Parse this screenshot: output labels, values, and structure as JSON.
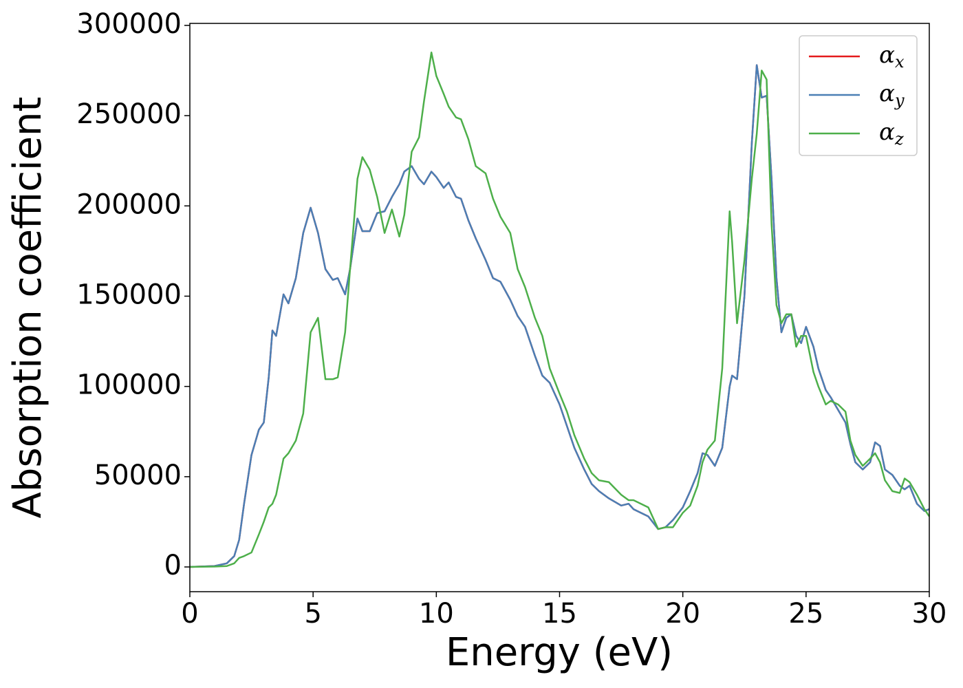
{
  "chart_data": {
    "type": "line",
    "xlabel": "Energy (eV)",
    "ylabel": "Absorption coefficient",
    "x": [
      0,
      1,
      1.5,
      1.8,
      2,
      2.2,
      2.5,
      2.8,
      3,
      3.2,
      3.35,
      3.5,
      3.8,
      4,
      4.3,
      4.6,
      4.9,
      5.2,
      5.5,
      5.8,
      6.0,
      6.3,
      6.5,
      6.8,
      7,
      7.3,
      7.6,
      7.9,
      8.2,
      8.5,
      8.7,
      9,
      9.3,
      9.5,
      9.8,
      10,
      10.3,
      10.5,
      10.8,
      11,
      11.3,
      11.6,
      12,
      12.3,
      12.6,
      13,
      13.3,
      13.6,
      14,
      14.3,
      14.6,
      15,
      15.3,
      15.6,
      16,
      16.3,
      16.6,
      17,
      17.5,
      17.8,
      18,
      18.3,
      18.6,
      19,
      19.3,
      19.6,
      20,
      20.3,
      20.6,
      20.8,
      21,
      21.3,
      21.6,
      21.9,
      22,
      22.2,
      22.5,
      22.8,
      23,
      23.2,
      23.4,
      23.6,
      23.8,
      24,
      24.2,
      24.4,
      24.6,
      24.8,
      25,
      25.3,
      25.5,
      25.8,
      26,
      26.3,
      26.6,
      26.8,
      27,
      27.3,
      27.6,
      27.8,
      28,
      28.2,
      28.5,
      28.8,
      29,
      29.2,
      29.5,
      29.8,
      30
    ],
    "series": [
      {
        "name": "αx",
        "color": "#e41a1c",
        "values": [
          0,
          500,
          2000,
          6000,
          15000,
          35000,
          62000,
          76000,
          80000,
          105000,
          131000,
          128000,
          151000,
          146000,
          160000,
          185000,
          199000,
          185000,
          165000,
          159000,
          160000,
          151000,
          165000,
          193000,
          186000,
          186000,
          196000,
          197000,
          205000,
          212000,
          219000,
          222000,
          215000,
          212000,
          219000,
          216000,
          210000,
          213000,
          205000,
          204000,
          192000,
          182000,
          170000,
          160000,
          158000,
          148000,
          139000,
          133000,
          117000,
          106000,
          102000,
          90000,
          78000,
          66000,
          54000,
          46000,
          42000,
          38000,
          34000,
          35000,
          32000,
          30000,
          28000,
          21000,
          22000,
          26000,
          33000,
          42000,
          52000,
          63000,
          62000,
          56000,
          66000,
          100000,
          106000,
          104000,
          150000,
          235000,
          278000,
          260000,
          261000,
          215000,
          160000,
          130000,
          138000,
          140000,
          128000,
          124000,
          133000,
          122000,
          110000,
          98000,
          94000,
          87000,
          80000,
          68000,
          58000,
          54000,
          58000,
          69000,
          67000,
          54000,
          51000,
          45000,
          43000,
          45000,
          35000,
          31000,
          32000
        ]
      },
      {
        "name": "αy",
        "color": "#4a7fb5",
        "values": [
          0,
          500,
          2000,
          6000,
          15000,
          35000,
          62000,
          76000,
          80000,
          105000,
          131000,
          128000,
          151000,
          146000,
          160000,
          185000,
          199000,
          185000,
          165000,
          159000,
          160000,
          151000,
          165000,
          193000,
          186000,
          186000,
          196000,
          197000,
          205000,
          212000,
          219000,
          222000,
          215000,
          212000,
          219000,
          216000,
          210000,
          213000,
          205000,
          204000,
          192000,
          182000,
          170000,
          160000,
          158000,
          148000,
          139000,
          133000,
          117000,
          106000,
          102000,
          90000,
          78000,
          66000,
          54000,
          46000,
          42000,
          38000,
          34000,
          35000,
          32000,
          30000,
          28000,
          21000,
          22000,
          26000,
          33000,
          42000,
          52000,
          63000,
          62000,
          56000,
          66000,
          100000,
          106000,
          104000,
          150000,
          235000,
          278000,
          260000,
          261000,
          215000,
          160000,
          130000,
          138000,
          140000,
          128000,
          124000,
          133000,
          122000,
          110000,
          98000,
          94000,
          87000,
          80000,
          68000,
          58000,
          54000,
          58000,
          69000,
          67000,
          54000,
          51000,
          45000,
          43000,
          45000,
          35000,
          31000,
          32000
        ]
      },
      {
        "name": "αz",
        "color": "#4daf4a",
        "values": [
          0,
          200,
          500,
          2000,
          5000,
          6000,
          8000,
          18000,
          25000,
          33000,
          35000,
          40000,
          60000,
          63000,
          70000,
          85000,
          130000,
          138000,
          104000,
          104000,
          105000,
          130000,
          165000,
          215000,
          227000,
          220000,
          205000,
          185000,
          198000,
          183000,
          195000,
          230000,
          238000,
          258000,
          285000,
          272000,
          262000,
          255000,
          249000,
          248000,
          237000,
          222000,
          218000,
          204000,
          194000,
          185000,
          165000,
          155000,
          138000,
          128000,
          110000,
          96000,
          86000,
          73000,
          60000,
          52000,
          48000,
          47000,
          40000,
          37000,
          37000,
          35000,
          33000,
          21000,
          22000,
          22000,
          30000,
          34000,
          45000,
          58000,
          65000,
          70000,
          110000,
          197000,
          180000,
          135000,
          170000,
          215000,
          240000,
          275000,
          270000,
          190000,
          145000,
          135000,
          140000,
          140000,
          122000,
          128000,
          128000,
          108000,
          100000,
          90000,
          92000,
          90000,
          86000,
          70000,
          62000,
          56000,
          60000,
          63000,
          58000,
          48000,
          42000,
          41000,
          49000,
          47000,
          40000,
          32000,
          28000
        ]
      }
    ],
    "xlim": [
      0,
      30
    ],
    "xticks": [
      0,
      5,
      10,
      15,
      20,
      25,
      30
    ],
    "ylim": [
      -13700,
      301100
    ],
    "yticks": [
      0,
      50000,
      100000,
      150000,
      200000,
      250000,
      300000
    ],
    "legend": "upper right"
  }
}
